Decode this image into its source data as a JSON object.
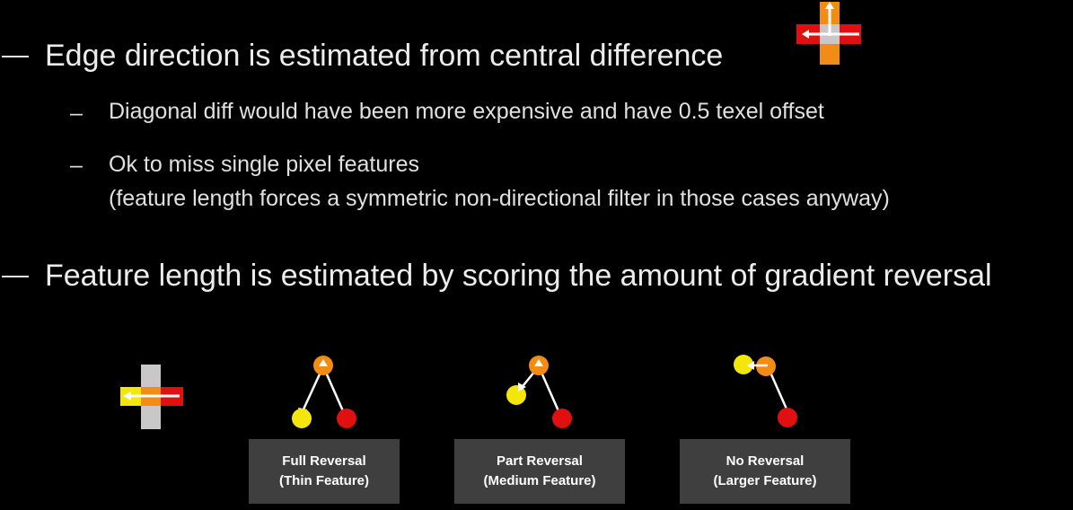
{
  "bullets": [
    {
      "text": "Edge direction is estimated from central difference",
      "sub": [
        {
          "lines": [
            "Diagonal diff would have been more expensive and have 0.5 texel offset"
          ]
        },
        {
          "lines": [
            "Ok to miss single pixel features",
            "(feature length forces a symmetric non-directional filter in those cases anyway)"
          ]
        }
      ]
    },
    {
      "text": "Feature length is estimated by scoring the amount of gradient reversal",
      "sub": []
    }
  ],
  "sub_marker": "–",
  "diagrams": [
    {
      "title": "Full Reversal",
      "subtitle": "(Thin Feature)"
    },
    {
      "title": "Part Reversal",
      "subtitle": "(Medium Feature)"
    },
    {
      "title": "No Reversal",
      "subtitle": "(Larger Feature)"
    }
  ],
  "colors": {
    "background": "#000000",
    "orange": "#f28c14",
    "red": "#e01010",
    "yellow": "#f2e60a",
    "gray": "#c8c8c8",
    "label_box": "#3f3f3f"
  }
}
